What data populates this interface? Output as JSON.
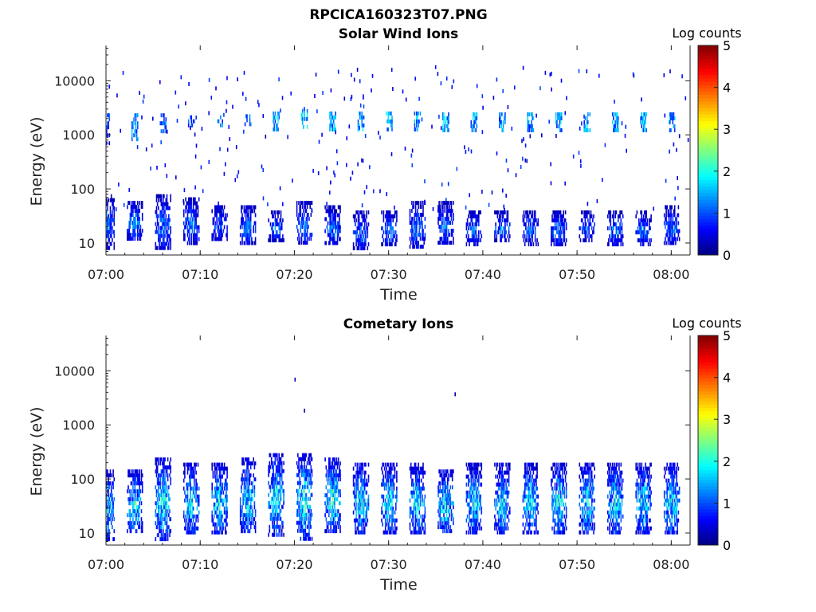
{
  "figure_title": "RPCICA160323T07.PNG",
  "colors": {
    "axis": "#222222",
    "background": "#ffffff"
  },
  "chart_data": [
    {
      "type": "heatmap",
      "title": "Solar Wind Ions",
      "xlabel": "Time",
      "ylabel": "Energy (eV)",
      "yscale": "log",
      "xlim": [
        "07:00",
        "08:02"
      ],
      "ylim": [
        6,
        45000
      ],
      "x_ticks": [
        "07:00",
        "07:10",
        "07:20",
        "07:30",
        "07:40",
        "07:50",
        "08:00"
      ],
      "y_ticks": [
        "10",
        "100",
        "1000",
        "10000"
      ],
      "colorbar": {
        "label": "Log counts",
        "ticks": [
          "0",
          "1",
          "2",
          "3",
          "4",
          "5"
        ],
        "range": [
          0,
          5
        ],
        "colormap": "jet"
      },
      "bursts": [
        {
          "t": "07:00",
          "low_e": [
            8,
            80
          ],
          "low_max": 1.9,
          "high_e": [
            700,
            2500
          ],
          "high_max": 1.3
        },
        {
          "t": "07:03",
          "low_e": [
            12,
            60
          ],
          "low_max": 2.0,
          "high_e": [
            800,
            2500
          ],
          "high_max": 1.8
        },
        {
          "t": "07:06",
          "low_e": [
            8,
            80
          ],
          "low_max": 1.9,
          "high_e": [
            1200,
            2500
          ],
          "high_max": 1.6
        },
        {
          "t": "07:09",
          "low_e": [
            10,
            70
          ],
          "low_max": 1.8,
          "high_e": [
            1400,
            2300
          ],
          "high_max": 1.4
        },
        {
          "t": "07:12",
          "low_e": [
            12,
            50
          ],
          "low_max": 1.8,
          "high_e": [
            1500,
            2300
          ],
          "high_max": 1.6
        },
        {
          "t": "07:15",
          "low_e": [
            10,
            50
          ],
          "low_max": 1.9,
          "high_e": [
            1500,
            2400
          ],
          "high_max": 1.6
        },
        {
          "t": "07:18",
          "low_e": [
            12,
            40
          ],
          "low_max": 1.7,
          "high_e": [
            1300,
            2700
          ],
          "high_max": 2.0
        },
        {
          "t": "07:21",
          "low_e": [
            10,
            60
          ],
          "low_max": 1.9,
          "high_e": [
            1400,
            3000
          ],
          "high_max": 2.1
        },
        {
          "t": "07:24",
          "low_e": [
            10,
            50
          ],
          "low_max": 1.8,
          "high_e": [
            1300,
            2700
          ],
          "high_max": 2.0
        },
        {
          "t": "07:27",
          "low_e": [
            8,
            40
          ],
          "low_max": 1.8,
          "high_e": [
            1300,
            2700
          ],
          "high_max": 2.0
        },
        {
          "t": "07:30",
          "low_e": [
            10,
            40
          ],
          "low_max": 2.0,
          "high_e": [
            1300,
            2700
          ],
          "high_max": 1.9
        },
        {
          "t": "07:33",
          "low_e": [
            8,
            60
          ],
          "low_max": 1.9,
          "high_e": [
            1300,
            2700
          ],
          "high_max": 1.8
        },
        {
          "t": "07:36",
          "low_e": [
            10,
            60
          ],
          "low_max": 1.8,
          "high_e": [
            1300,
            2600
          ],
          "high_max": 2.0
        },
        {
          "t": "07:39",
          "low_e": [
            10,
            40
          ],
          "low_max": 1.8,
          "high_e": [
            1300,
            2600
          ],
          "high_max": 1.9
        },
        {
          "t": "07:42",
          "low_e": [
            12,
            40
          ],
          "low_max": 1.9,
          "high_e": [
            1300,
            2600
          ],
          "high_max": 1.8
        },
        {
          "t": "07:45",
          "low_e": [
            10,
            40
          ],
          "low_max": 1.8,
          "high_e": [
            1300,
            2600
          ],
          "high_max": 1.8
        },
        {
          "t": "07:48",
          "low_e": [
            10,
            40
          ],
          "low_max": 1.9,
          "high_e": [
            1300,
            2600
          ],
          "high_max": 1.8
        },
        {
          "t": "07:51",
          "low_e": [
            12,
            40
          ],
          "low_max": 1.8,
          "high_e": [
            1300,
            2600
          ],
          "high_max": 1.9
        },
        {
          "t": "07:54",
          "low_e": [
            10,
            40
          ],
          "low_max": 2.0,
          "high_e": [
            1300,
            2600
          ],
          "high_max": 1.9
        },
        {
          "t": "07:57",
          "low_e": [
            10,
            40
          ],
          "low_max": 1.8,
          "high_e": [
            1300,
            2600
          ],
          "high_max": 2.0
        },
        {
          "t": "08:00",
          "low_e": [
            10,
            50
          ],
          "low_max": 1.9,
          "high_e": [
            1300,
            2600
          ],
          "high_max": 1.8
        }
      ],
      "scatter_e": [
        40,
        20000
      ],
      "scatter_max": 1.0
    },
    {
      "type": "heatmap",
      "title": "Cometary Ions",
      "xlabel": "Time",
      "ylabel": "Energy (eV)",
      "yscale": "log",
      "xlim": [
        "07:00",
        "08:02"
      ],
      "ylim": [
        6,
        45000
      ],
      "x_ticks": [
        "07:00",
        "07:10",
        "07:20",
        "07:30",
        "07:40",
        "07:50",
        "08:00"
      ],
      "y_ticks": [
        "10",
        "100",
        "1000",
        "10000"
      ],
      "colorbar": {
        "label": "Log counts",
        "ticks": [
          "0",
          "1",
          "2",
          "3",
          "4",
          "5"
        ],
        "range": [
          0,
          5
        ],
        "colormap": "jet"
      },
      "bursts": [
        {
          "t": "07:00",
          "low_e": [
            8,
            150
          ],
          "low_max": 2.7
        },
        {
          "t": "07:03",
          "low_e": [
            10,
            150
          ],
          "low_max": 2.8
        },
        {
          "t": "07:06",
          "low_e": [
            8,
            250
          ],
          "low_max": 2.9
        },
        {
          "t": "07:09",
          "low_e": [
            10,
            200
          ],
          "low_max": 2.8
        },
        {
          "t": "07:12",
          "low_e": [
            10,
            200
          ],
          "low_max": 2.8
        },
        {
          "t": "07:15",
          "low_e": [
            10,
            250
          ],
          "low_max": 2.7
        },
        {
          "t": "07:18",
          "low_e": [
            10,
            300
          ],
          "low_max": 2.9
        },
        {
          "t": "07:21",
          "low_e": [
            8,
            300
          ],
          "low_max": 3.1
        },
        {
          "t": "07:24",
          "low_e": [
            10,
            250
          ],
          "low_max": 3.0
        },
        {
          "t": "07:27",
          "low_e": [
            10,
            200
          ],
          "low_max": 2.8
        },
        {
          "t": "07:30",
          "low_e": [
            10,
            200
          ],
          "low_max": 2.7
        },
        {
          "t": "07:33",
          "low_e": [
            10,
            200
          ],
          "low_max": 2.7
        },
        {
          "t": "07:36",
          "low_e": [
            10,
            150
          ],
          "low_max": 2.8
        },
        {
          "t": "07:39",
          "low_e": [
            10,
            200
          ],
          "low_max": 2.6
        },
        {
          "t": "07:42",
          "low_e": [
            10,
            200
          ],
          "low_max": 2.6
        },
        {
          "t": "07:45",
          "low_e": [
            10,
            200
          ],
          "low_max": 2.8
        },
        {
          "t": "07:48",
          "low_e": [
            10,
            200
          ],
          "low_max": 2.8
        },
        {
          "t": "07:51",
          "low_e": [
            10,
            200
          ],
          "low_max": 2.8
        },
        {
          "t": "07:54",
          "low_e": [
            10,
            200
          ],
          "low_max": 2.7
        },
        {
          "t": "07:57",
          "low_e": [
            10,
            200
          ],
          "low_max": 2.8
        },
        {
          "t": "08:00",
          "low_e": [
            10,
            200
          ],
          "low_max": 2.8
        }
      ],
      "outliers": [
        {
          "t": "07:20",
          "e": 7500,
          "v": 0.3
        },
        {
          "t": "07:21",
          "e": 2000,
          "v": 0.3
        },
        {
          "t": "07:37",
          "e": 4000,
          "v": 0.2
        }
      ]
    }
  ]
}
